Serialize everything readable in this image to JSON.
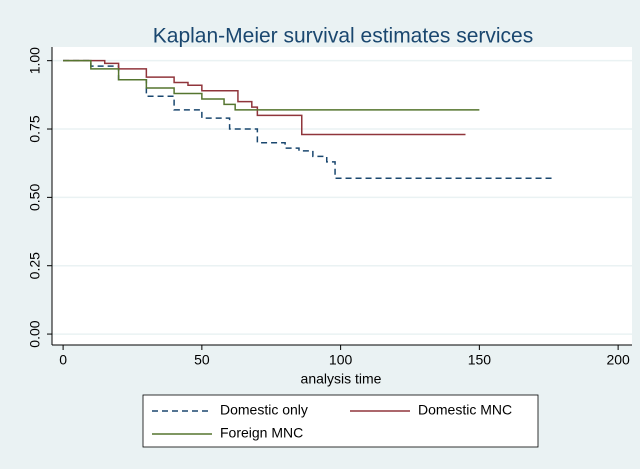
{
  "chart_data": {
    "type": "step",
    "title": "Kaplan-Meier survival estimates services",
    "x_label": "analysis time",
    "xlim": [
      -4,
      205
    ],
    "xticks": [
      0,
      50,
      100,
      150,
      200
    ],
    "ylim": [
      -0.04,
      1.05
    ],
    "yticks": [
      {
        "value": 0,
        "label": "0.00"
      },
      0.25,
      {
        "value": 0.5,
        "label": "0.50"
      },
      0.75,
      {
        "value": 1,
        "label": "1.00"
      }
    ],
    "grid": true,
    "series": [
      {
        "name": "Domestic only",
        "color": "#1a476f",
        "dash": true,
        "x": [
          0,
          10,
          20,
          30,
          40,
          50,
          60,
          70,
          80,
          85,
          90,
          95,
          98,
          177
        ],
        "values": [
          1,
          0.98,
          0.93,
          0.87,
          0.82,
          0.79,
          0.75,
          0.7,
          0.68,
          0.67,
          0.65,
          0.63,
          0.57,
          0.57
        ]
      },
      {
        "name": "Domestic MNC",
        "color": "#90353b",
        "dash": false,
        "x": [
          0,
          10,
          15,
          20,
          30,
          40,
          45,
          50,
          63,
          68,
          70,
          86,
          145
        ],
        "values": [
          1,
          1,
          0.99,
          0.97,
          0.94,
          0.92,
          0.91,
          0.89,
          0.85,
          0.83,
          0.8,
          0.73,
          0.73
        ]
      },
      {
        "name": "Foreign MNC",
        "color": "#55752f",
        "dash": false,
        "x": [
          0,
          5,
          10,
          20,
          30,
          40,
          50,
          58,
          62,
          150
        ],
        "values": [
          1,
          1,
          0.97,
          0.93,
          0.9,
          0.88,
          0.86,
          0.84,
          0.82,
          0.82
        ]
      }
    ]
  }
}
